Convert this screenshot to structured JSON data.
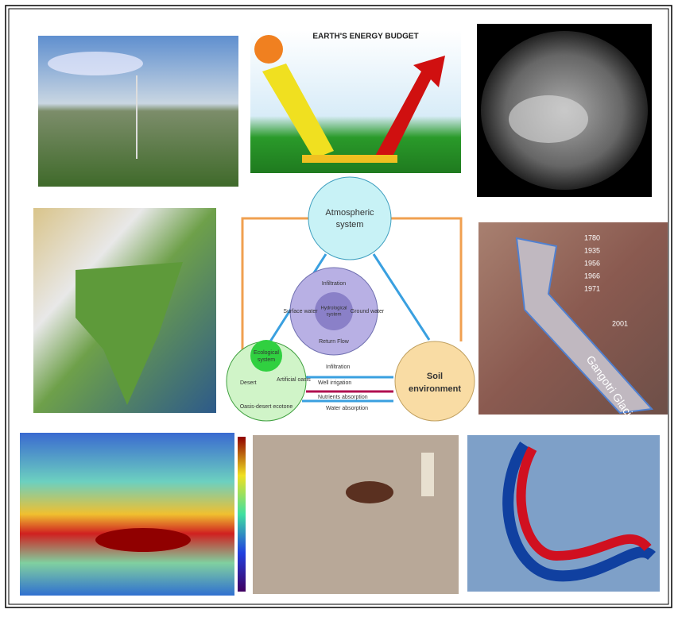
{
  "energy_budget": {
    "title": "EARTH'S ENERGY BUDGET"
  },
  "diagram": {
    "atmospheric": [
      "Atmospheric",
      "system"
    ],
    "soil": [
      "Soil",
      "environment"
    ],
    "ecological": [
      "Ecological",
      "system"
    ],
    "hydrological": [
      "Hydrological",
      "system"
    ],
    "inner": [
      "Infiltration",
      "Return Flow",
      "Surface water",
      "Ground water"
    ],
    "eco_parts": [
      "Desert",
      "Artificial oasis",
      "Oasis-desert ecotone"
    ],
    "links": [
      "Infiltration",
      "Well irrigation",
      "Nutrients absorption",
      "Water absorption"
    ]
  },
  "glacier": {
    "years": [
      "1780",
      "1935",
      "1956",
      "1966",
      "1971",
      "2001"
    ],
    "name": "Gangotri Glacier"
  }
}
